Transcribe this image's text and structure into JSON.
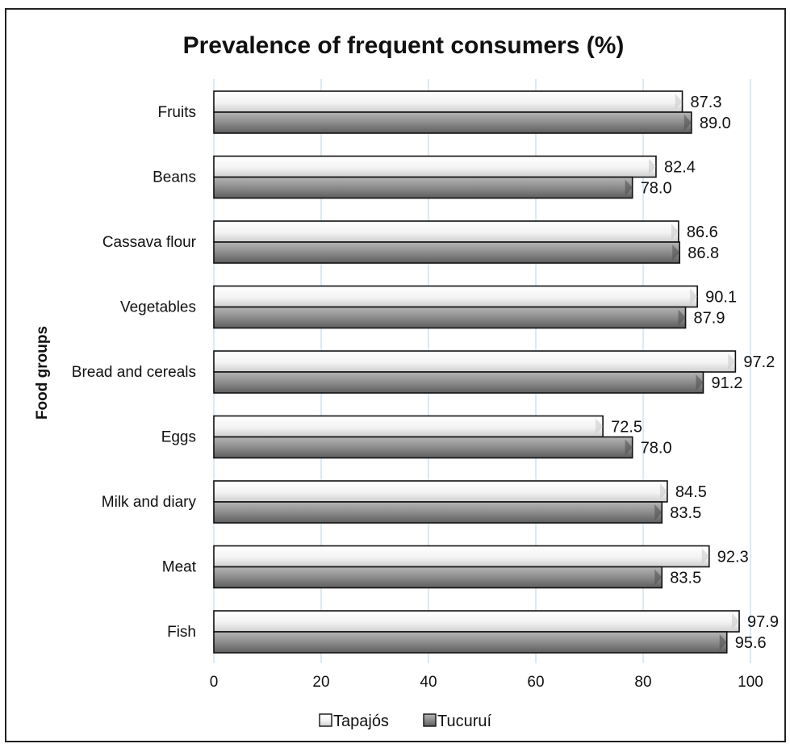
{
  "chart_data": {
    "type": "bar",
    "orientation": "horizontal",
    "title": "Prevalence of frequent consumers (%)",
    "ylabel": "Food groups",
    "xlabel": "",
    "categories": [
      "Fruits",
      "Beans",
      "Cassava flour",
      "Vegetables",
      "Bread and cereals",
      "Eggs",
      "Milk and diary",
      "Meat",
      "Fish"
    ],
    "series": [
      {
        "name": "Tapajós",
        "values": [
          87.3,
          82.4,
          86.6,
          90.1,
          97.2,
          72.5,
          84.5,
          92.3,
          97.9
        ],
        "labels": [
          "87.3",
          "82.4",
          "86.6",
          "90.1",
          "97.2",
          "72.5",
          "84.5",
          "92.3",
          "97.9"
        ],
        "color": "#f4f4f4"
      },
      {
        "name": "Tucuruí",
        "values": [
          89.0,
          78.0,
          86.8,
          87.9,
          91.2,
          78.0,
          83.5,
          83.5,
          95.6
        ],
        "labels": [
          "89.0",
          "78.0",
          "86.8",
          "87.9",
          "91.2",
          "78.0",
          "83.5",
          "83.5",
          "95.6"
        ],
        "color": "#8a8a8a"
      }
    ],
    "xlim": [
      0,
      100
    ],
    "xticks": [
      "0",
      "20",
      "40",
      "60",
      "80",
      "100"
    ],
    "grid": true,
    "gridline_color": "#cfe3ef",
    "legend_position": "bottom"
  }
}
